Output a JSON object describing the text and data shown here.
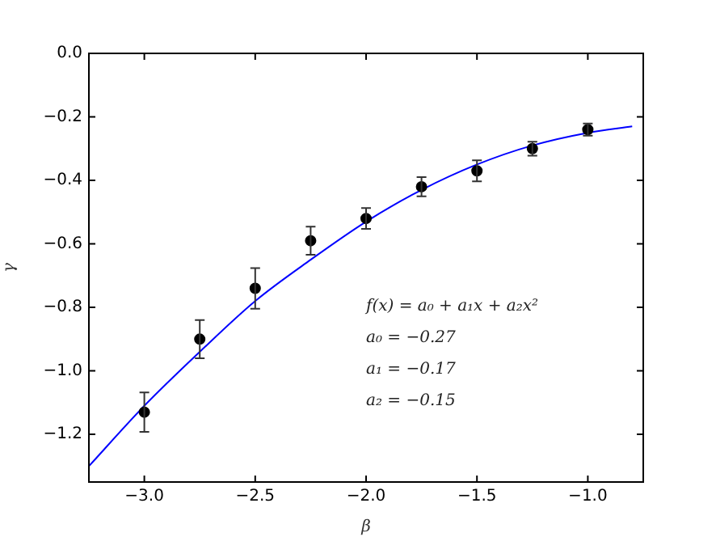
{
  "chart_data": {
    "type": "scatter",
    "xlabel": "β",
    "ylabel": "γ",
    "xlim": [
      -3.25,
      -0.75
    ],
    "xticks": [
      {
        "value": -3.0,
        "label": "−3.0"
      },
      {
        "value": -2.5,
        "label": "−2.5"
      },
      {
        "value": -2.0,
        "label": "−2.0"
      },
      {
        "value": -1.5,
        "label": "−1.5"
      },
      {
        "value": -1.0,
        "label": "−1.0"
      }
    ],
    "ylim": [
      -1.35,
      0
    ],
    "yticks": [
      {
        "value": -1.2,
        "label": "−1.2"
      },
      {
        "value": -1.0,
        "label": "−1.0"
      },
      {
        "value": -0.8,
        "label": "−0.8"
      },
      {
        "value": -0.6,
        "label": "−0.6"
      },
      {
        "value": -0.4,
        "label": "−0.4"
      },
      {
        "value": -0.2,
        "label": "−0.2"
      },
      {
        "value": 0,
        "label": "0.0"
      }
    ],
    "series": [
      {
        "color": "#000000",
        "marker": "circle",
        "x": [
          -3.0,
          -2.75,
          -2.5,
          -2.25,
          -2.0,
          -1.75,
          -1.5,
          -1.25,
          -1.0
        ],
        "values": [
          -1.13,
          -0.9,
          -0.74,
          -0.59,
          -0.52,
          -0.42,
          -0.37,
          -0.3,
          -0.24
        ],
        "errors": [
          0.062,
          0.06,
          0.064,
          0.044,
          0.033,
          0.03,
          0.033,
          0.022,
          0.019
        ]
      },
      {
        "type": "line",
        "color": "#0000ff",
        "marker": "none",
        "x": [
          -3.25,
          -3.0,
          -2.75,
          -2.5,
          -2.25,
          -2.0,
          -1.75,
          -1.5,
          -1.25,
          -1.0,
          -0.8
        ],
        "values": [
          -1.3,
          -1.11,
          -0.94,
          -0.78,
          -0.65,
          -0.53,
          -0.43,
          -0.35,
          -0.29,
          -0.25,
          -0.23
        ]
      }
    ],
    "annotations": [
      "f(x) = a₀ + a₁x + a₂x²",
      "a₀ = −0.27",
      "a₁ = −0.17",
      "a₂ = −0.15"
    ]
  }
}
